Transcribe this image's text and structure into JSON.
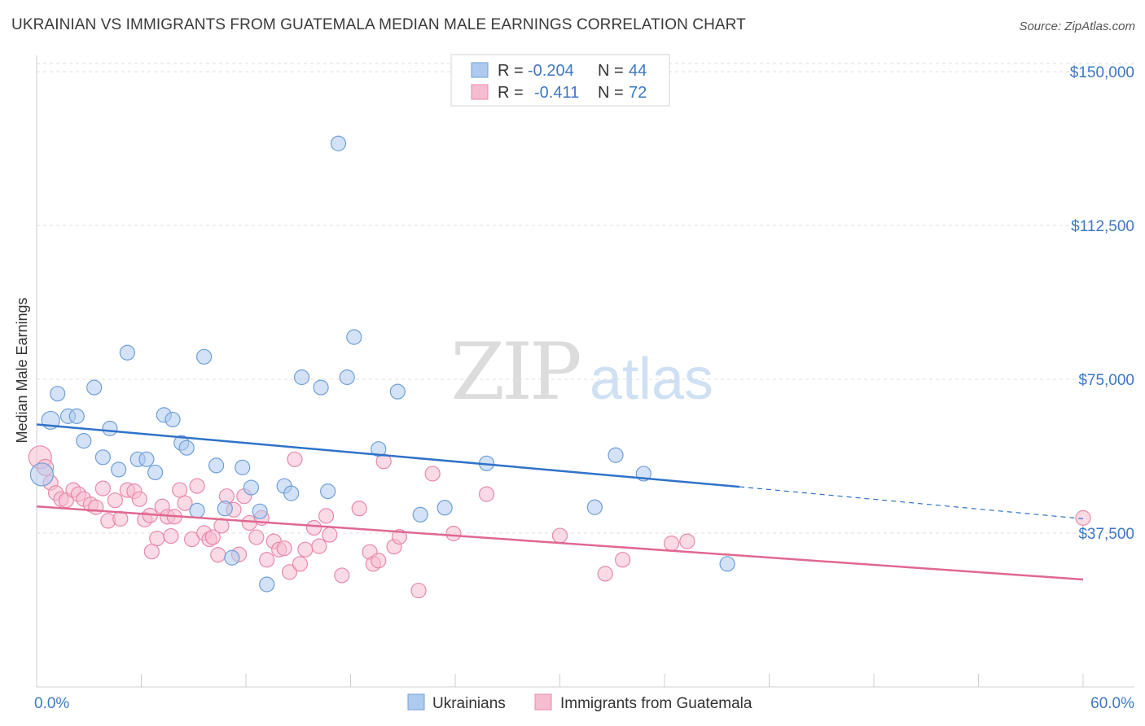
{
  "title": "UKRAINIAN VS IMMIGRANTS FROM GUATEMALA MEDIAN MALE EARNINGS CORRELATION CHART",
  "source": "Source: ZipAtlas.com",
  "watermark": {
    "zip": "ZIP",
    "atlas": "atlas"
  },
  "colors": {
    "blue_fill": "#aecbef",
    "blue_stroke": "#6f9fd8",
    "blue_line": "#2f72c9",
    "pink_fill": "#f6bccf",
    "pink_stroke": "#e88aa8",
    "pink_line": "#e0688f",
    "tick_text": "#3d78c4",
    "grid": "#dedede"
  },
  "legend": {
    "rows": [
      {
        "r_label": "R =",
        "r_value": "-0.204",
        "n_label": "N =",
        "n_value": "44",
        "color": "#aecbef"
      },
      {
        "r_label": "R =",
        "r_value": "-0.411",
        "n_label": "N =",
        "n_value": "72",
        "color": "#f6bccf"
      }
    ]
  },
  "bottom_legend": [
    "Ukrainians",
    "Immigrants from Guatemala"
  ],
  "chart_data": {
    "type": "scatter",
    "title": "UKRAINIAN VS IMMIGRANTS FROM GUATEMALA MEDIAN MALE EARNINGS CORRELATION CHART",
    "xlabel": "",
    "ylabel": "Median Male Earnings",
    "xlim": [
      0,
      60
    ],
    "ylim": [
      0,
      152000
    ],
    "x_tick_labels": [
      "0.0%",
      "60.0%"
    ],
    "y_ticks": [
      37500,
      75000,
      112500,
      150000
    ],
    "y_tick_labels": [
      "$37,500",
      "$75,000",
      "$112,500",
      "$150,000"
    ],
    "grid": "horizontal dashed",
    "legend_position": "top-center",
    "series": [
      {
        "name": "Ukrainians",
        "r": -0.204,
        "n": 44,
        "trend": {
          "x": [
            0,
            40.3
          ],
          "y": [
            64000,
            48800
          ],
          "dashed_to": [
            60,
            41000
          ]
        },
        "points": [
          [
            0.3,
            51800,
            14
          ],
          [
            0.8,
            65000,
            11
          ],
          [
            1.2,
            71500,
            9
          ],
          [
            1.8,
            66000,
            9
          ],
          [
            2.3,
            66000,
            9
          ],
          [
            2.7,
            60000,
            9
          ],
          [
            3.3,
            73000,
            9
          ],
          [
            3.8,
            56000,
            9
          ],
          [
            4.2,
            63000,
            9
          ],
          [
            4.7,
            53000,
            9
          ],
          [
            5.2,
            81500,
            9
          ],
          [
            5.8,
            55500,
            9
          ],
          [
            6.3,
            55500,
            9
          ],
          [
            6.8,
            52300,
            9
          ],
          [
            7.3,
            66300,
            9
          ],
          [
            7.8,
            65200,
            9
          ],
          [
            8.3,
            59500,
            9
          ],
          [
            8.6,
            58300,
            9
          ],
          [
            9.2,
            43000,
            9
          ],
          [
            9.6,
            80500,
            9
          ],
          [
            10.3,
            54000,
            9
          ],
          [
            10.8,
            43500,
            9
          ],
          [
            11.2,
            31500,
            9
          ],
          [
            11.8,
            53500,
            9
          ],
          [
            12.3,
            48600,
            9
          ],
          [
            12.8,
            42800,
            9
          ],
          [
            13.2,
            25000,
            9
          ],
          [
            14.2,
            49000,
            9
          ],
          [
            14.6,
            47200,
            9
          ],
          [
            15.2,
            75500,
            9
          ],
          [
            16.3,
            73000,
            9
          ],
          [
            16.7,
            47700,
            9
          ],
          [
            17.3,
            132500,
            9
          ],
          [
            17.8,
            75500,
            9
          ],
          [
            18.2,
            85300,
            9
          ],
          [
            19.6,
            58000,
            9
          ],
          [
            20.7,
            72000,
            9
          ],
          [
            22.0,
            42000,
            9
          ],
          [
            23.4,
            43700,
            9
          ],
          [
            25.8,
            54500,
            9
          ],
          [
            32.0,
            43800,
            9
          ],
          [
            33.2,
            56500,
            9
          ],
          [
            34.8,
            52000,
            9
          ],
          [
            39.6,
            30000,
            9
          ]
        ]
      },
      {
        "name": "Immigrants from Guatemala",
        "r": -0.411,
        "n": 72,
        "trend": {
          "x": [
            0,
            60
          ],
          "y": [
            44000,
            26200
          ]
        },
        "points": [
          [
            0.2,
            56000,
            14
          ],
          [
            0.5,
            53500,
            10
          ],
          [
            0.8,
            49800,
            9
          ],
          [
            1.1,
            47300,
            9
          ],
          [
            1.4,
            45800,
            9
          ],
          [
            1.7,
            45500,
            9
          ],
          [
            2.1,
            48000,
            9
          ],
          [
            2.4,
            47000,
            9
          ],
          [
            2.7,
            45800,
            9
          ],
          [
            3.1,
            44500,
            9
          ],
          [
            3.4,
            43800,
            9
          ],
          [
            3.8,
            48400,
            9
          ],
          [
            4.1,
            40500,
            9
          ],
          [
            4.5,
            45500,
            9
          ],
          [
            4.8,
            41000,
            9
          ],
          [
            5.2,
            48000,
            9
          ],
          [
            5.6,
            47700,
            9
          ],
          [
            5.9,
            45800,
            9
          ],
          [
            6.2,
            40800,
            9
          ],
          [
            6.5,
            41800,
            9
          ],
          [
            6.6,
            33000,
            9
          ],
          [
            6.9,
            36200,
            9
          ],
          [
            7.2,
            44000,
            9
          ],
          [
            7.5,
            41500,
            9
          ],
          [
            7.7,
            36800,
            9
          ],
          [
            7.9,
            41500,
            9
          ],
          [
            8.2,
            48000,
            9
          ],
          [
            8.5,
            44800,
            9
          ],
          [
            8.9,
            36000,
            9
          ],
          [
            9.2,
            49000,
            9
          ],
          [
            9.6,
            37500,
            9
          ],
          [
            9.9,
            36000,
            9
          ],
          [
            10.1,
            36500,
            9
          ],
          [
            10.4,
            32200,
            9
          ],
          [
            10.6,
            39300,
            9
          ],
          [
            10.9,
            46500,
            9
          ],
          [
            11.3,
            43200,
            9
          ],
          [
            11.6,
            32300,
            9
          ],
          [
            11.9,
            46500,
            9
          ],
          [
            12.2,
            40000,
            9
          ],
          [
            12.6,
            36500,
            9
          ],
          [
            12.9,
            41200,
            9
          ],
          [
            13.2,
            31000,
            9
          ],
          [
            13.6,
            35500,
            9
          ],
          [
            13.9,
            33500,
            9
          ],
          [
            14.2,
            33800,
            9
          ],
          [
            14.5,
            28000,
            9
          ],
          [
            14.8,
            55500,
            9
          ],
          [
            15.1,
            30000,
            9
          ],
          [
            15.4,
            33500,
            9
          ],
          [
            15.9,
            38800,
            9
          ],
          [
            16.2,
            34300,
            9
          ],
          [
            16.6,
            41700,
            9
          ],
          [
            16.8,
            37100,
            9
          ],
          [
            17.5,
            27200,
            9
          ],
          [
            18.5,
            43500,
            9
          ],
          [
            19.1,
            32900,
            9
          ],
          [
            19.3,
            30000,
            9
          ],
          [
            19.6,
            30800,
            9
          ],
          [
            19.9,
            55000,
            9
          ],
          [
            20.5,
            34200,
            9
          ],
          [
            20.8,
            36600,
            9
          ],
          [
            21.9,
            23500,
            9
          ],
          [
            22.7,
            52000,
            9
          ],
          [
            23.9,
            37400,
            9
          ],
          [
            25.8,
            47000,
            9
          ],
          [
            30.0,
            36900,
            9
          ],
          [
            32.6,
            27600,
            9
          ],
          [
            33.6,
            31000,
            9
          ],
          [
            36.4,
            35000,
            9
          ],
          [
            37.3,
            35500,
            9
          ],
          [
            60.0,
            41200,
            9
          ]
        ]
      }
    ]
  }
}
